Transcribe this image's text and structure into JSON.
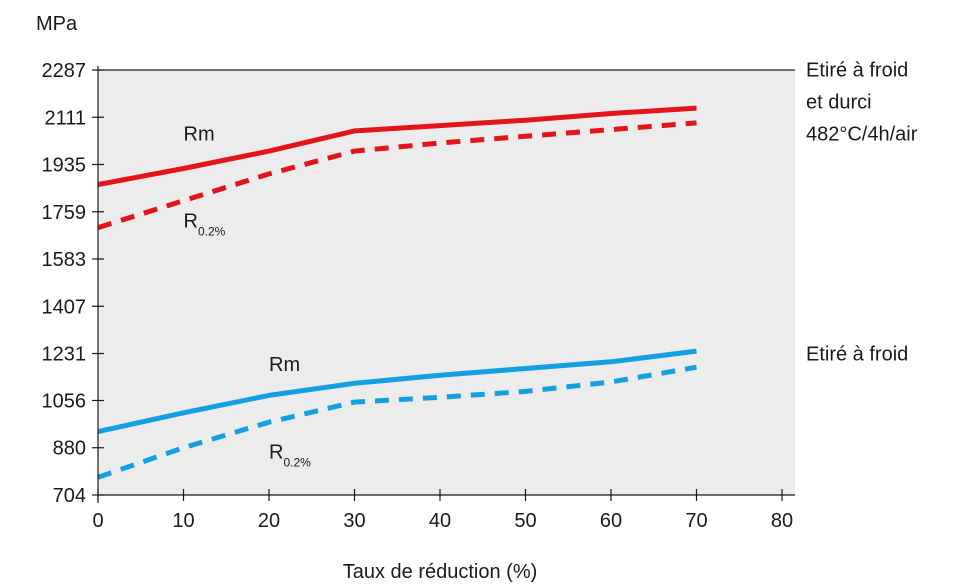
{
  "chart_data": {
    "type": "line",
    "title": "",
    "ylabel": "MPa",
    "xlabel": "Taux de réduction (%)",
    "xlim": [
      0,
      80
    ],
    "ylim": [
      704,
      2287
    ],
    "x_ticks": [
      0,
      10,
      20,
      30,
      40,
      50,
      60,
      70,
      80
    ],
    "y_ticks": [
      704,
      880,
      1056,
      1231,
      1407,
      1583,
      1759,
      1935,
      2111,
      2287
    ],
    "grid": false,
    "colors": {
      "red": "#e3141b",
      "blue": "#12a0e0",
      "plot_bg": "#ececec"
    },
    "groups": [
      {
        "lines": [
          "Etiré à froid",
          "et durci",
          "482°C/4h/air"
        ],
        "color": "#e3141b"
      },
      {
        "lines": [
          "Etiré à froid"
        ],
        "color": "#12a0e0"
      }
    ],
    "series": [
      {
        "name": "Rm",
        "group": 0,
        "style": "solid",
        "color": "#e3141b",
        "x": [
          0,
          10,
          20,
          30,
          40,
          50,
          60,
          70
        ],
        "y": [
          1860,
          1920,
          1985,
          2060,
          2080,
          2100,
          2125,
          2145
        ]
      },
      {
        "name": "R",
        "sub": "0.2%",
        "group": 0,
        "style": "dashed",
        "color": "#e3141b",
        "x": [
          0,
          10,
          20,
          30,
          40,
          50,
          60,
          70
        ],
        "y": [
          1700,
          1800,
          1900,
          1985,
          2015,
          2040,
          2065,
          2090
        ]
      },
      {
        "name": "Rm",
        "group": 1,
        "style": "solid",
        "color": "#12a0e0",
        "x": [
          0,
          10,
          20,
          30,
          40,
          50,
          60,
          70
        ],
        "y": [
          940,
          1010,
          1075,
          1120,
          1150,
          1175,
          1200,
          1240
        ]
      },
      {
        "name": "R",
        "sub": "0.2%",
        "group": 1,
        "style": "dashed",
        "color": "#12a0e0",
        "x": [
          0,
          10,
          20,
          30,
          40,
          50,
          60,
          70
        ],
        "y": [
          770,
          880,
          975,
          1050,
          1068,
          1090,
          1125,
          1180
        ]
      }
    ],
    "series_label_positions": [
      {
        "x": 10,
        "y": 2025
      },
      {
        "x": 10,
        "y": 1700
      },
      {
        "x": 20,
        "y": 1165
      },
      {
        "x": 20,
        "y": 840
      }
    ]
  }
}
